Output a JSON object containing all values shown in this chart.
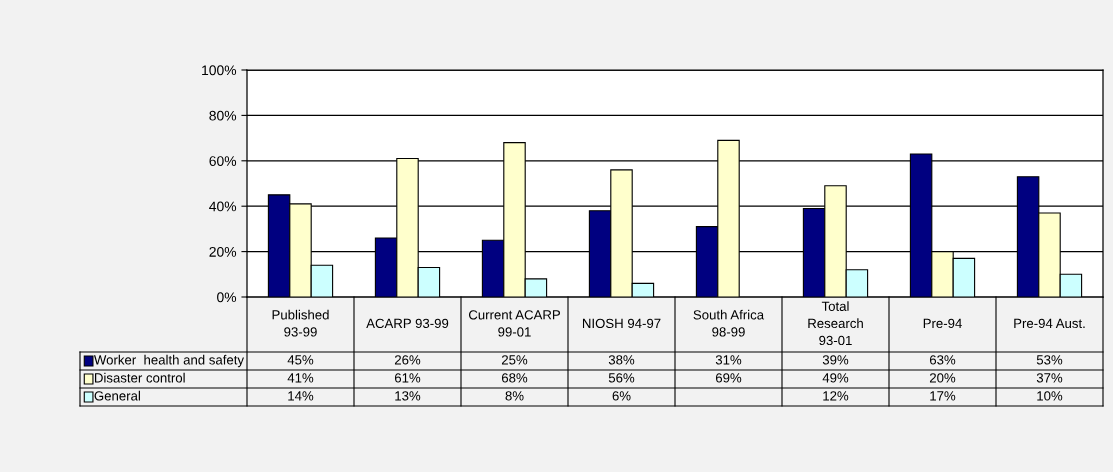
{
  "chart_data": {
    "type": "bar",
    "categories": [
      "Published 93-99",
      "ACARP 93-99",
      "Current ACARP 99-01",
      "NIOSH 94-97",
      "South Africa 98-99",
      "Total Research 93-01",
      "Pre-94",
      "Pre-94 Aust."
    ],
    "series": [
      {
        "name": "Worker  health and safety",
        "color": "#000080",
        "values": [
          45,
          26,
          25,
          38,
          31,
          39,
          63,
          53
        ],
        "value_labels": [
          "45%",
          "26%",
          "25%",
          "38%",
          "31%",
          "39%",
          "63%",
          "53%"
        ]
      },
      {
        "name": "Disaster control",
        "color": "#ffffcc",
        "values": [
          41,
          61,
          68,
          56,
          69,
          49,
          20,
          37
        ],
        "value_labels": [
          "41%",
          "61%",
          "68%",
          "56%",
          "69%",
          "49%",
          "20%",
          "37%"
        ]
      },
      {
        "name": "General",
        "color": "#ccffff",
        "values": [
          14,
          13,
          8,
          6,
          null,
          12,
          17,
          10
        ],
        "value_labels": [
          "14%",
          "13%",
          "8%",
          "6%",
          null,
          "12%",
          "17%",
          "10%"
        ]
      }
    ],
    "ylim": [
      0,
      100
    ],
    "yticks": [
      {
        "value": 0,
        "label": "0%"
      },
      {
        "value": 20,
        "label": "20%"
      },
      {
        "value": 40,
        "label": "40%"
      },
      {
        "value": 60,
        "label": "60%"
      },
      {
        "value": 80,
        "label": "80%"
      },
      {
        "value": 100,
        "label": "100%"
      }
    ],
    "grid": "y",
    "legend": "bottom left"
  }
}
